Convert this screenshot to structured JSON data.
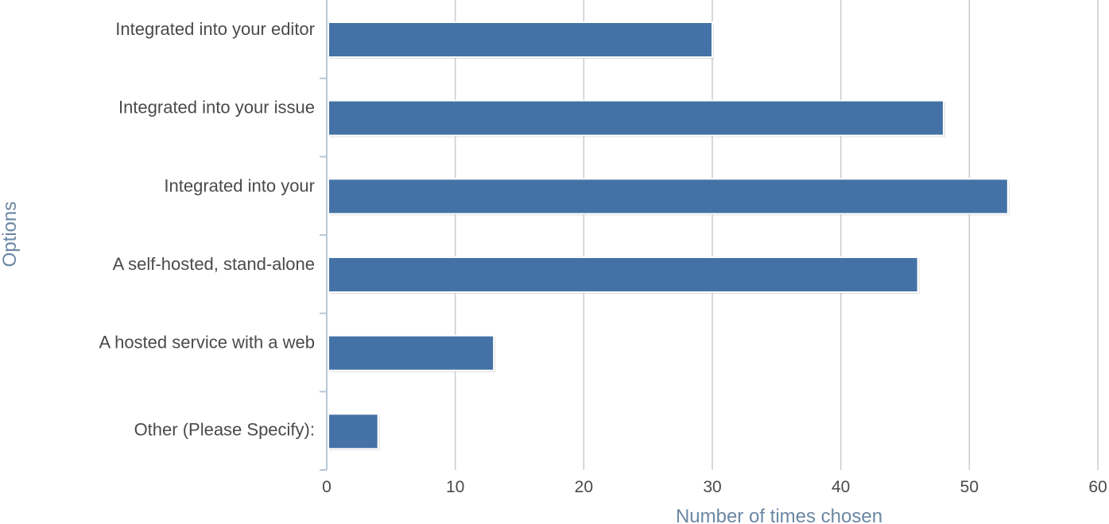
{
  "chart_data": {
    "type": "bar",
    "orientation": "horizontal",
    "categories": [
      "Integrated into your editor",
      "Integrated into your issue",
      "Integrated into your",
      "A self-hosted, stand-alone",
      "A hosted service with a web",
      "Other (Please Specify):"
    ],
    "values": [
      30,
      48,
      53,
      46,
      13,
      4
    ],
    "xlabel": "Number of times chosen",
    "ylabel": "Options",
    "xlim": [
      0,
      60
    ],
    "xticks": [
      0,
      10,
      20,
      30,
      40,
      50,
      60
    ],
    "grid": "vertical",
    "legend": "none"
  },
  "colors": {
    "bar": "#4472a6",
    "bar_edge": "#ffffff",
    "grid": "#c8ccd1",
    "axis": "#b9c8d6",
    "axis_title": "#6b87a3",
    "text": "#4a4a4a"
  }
}
